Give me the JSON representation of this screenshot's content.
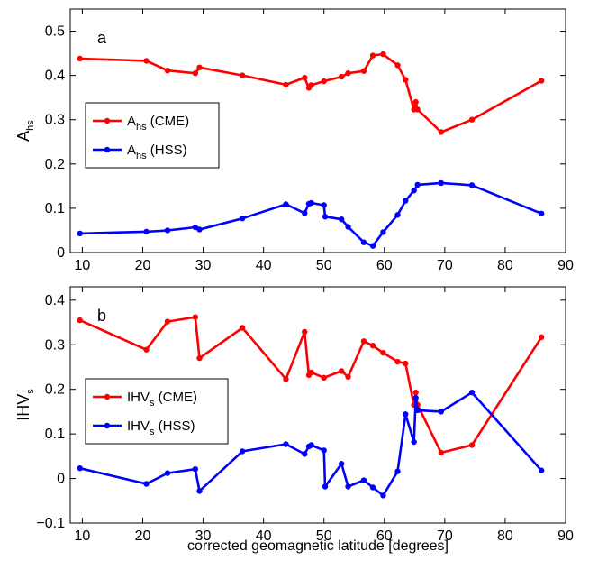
{
  "chart_data": [
    {
      "type": "line",
      "panel_label": "a",
      "ylabel": {
        "main": "A",
        "sub": "hs"
      },
      "xlim": [
        8,
        90
      ],
      "ylim": [
        0,
        0.55
      ],
      "x_ticks": [
        10,
        20,
        30,
        40,
        50,
        60,
        70,
        80,
        90
      ],
      "y_ticks": [
        0,
        0.1,
        0.2,
        0.3,
        0.4,
        0.5
      ],
      "y_tick_labels": [
        "0",
        "0.1",
        "0.2",
        "0.3",
        "0.4",
        "0.5"
      ],
      "legend_position": "center-left",
      "series": [
        {
          "name": "A_hs (CME)",
          "label_main": "A",
          "label_sub": "hs",
          "label_suffix": " (CME)",
          "color": "#ff0000",
          "x": [
            9.6,
            20.6,
            24.1,
            28.7,
            29.4,
            36.5,
            43.7,
            46.8,
            47.5,
            47.9,
            50.0,
            52.9,
            54.0,
            56.6,
            58.1,
            59.8,
            62.2,
            63.5,
            64.9,
            65.2,
            65.5,
            69.4,
            74.5,
            86.0
          ],
          "y": [
            0.438,
            0.433,
            0.411,
            0.405,
            0.418,
            0.4,
            0.379,
            0.395,
            0.372,
            0.378,
            0.387,
            0.397,
            0.405,
            0.41,
            0.445,
            0.448,
            0.423,
            0.39,
            0.323,
            0.34,
            0.323,
            0.272,
            0.3,
            0.388
          ]
        },
        {
          "name": "A_hs (HSS)",
          "label_main": "A",
          "label_sub": "hs",
          "label_suffix": " (HSS)",
          "color": "#0000ff",
          "x": [
            9.6,
            20.6,
            24.1,
            28.7,
            29.4,
            36.5,
            43.7,
            46.8,
            47.5,
            47.9,
            50.0,
            50.2,
            52.9,
            54.0,
            56.6,
            58.1,
            59.8,
            62.2,
            63.5,
            64.9,
            65.5,
            69.4,
            74.5,
            86.0
          ],
          "y": [
            0.043,
            0.047,
            0.05,
            0.057,
            0.052,
            0.077,
            0.109,
            0.089,
            0.11,
            0.112,
            0.107,
            0.081,
            0.075,
            0.058,
            0.023,
            0.015,
            0.046,
            0.085,
            0.117,
            0.14,
            0.153,
            0.157,
            0.152,
            0.088
          ]
        }
      ]
    },
    {
      "type": "line",
      "panel_label": "b",
      "ylabel": {
        "main": "IHV",
        "sub": "s"
      },
      "xlabel": "corrected geomagnetic latitude [degrees]",
      "xlim": [
        8,
        90
      ],
      "ylim": [
        -0.1,
        0.43
      ],
      "x_ticks": [
        10,
        20,
        30,
        40,
        50,
        60,
        70,
        80,
        90
      ],
      "y_ticks": [
        -0.1,
        0,
        0.1,
        0.2,
        0.3,
        0.4
      ],
      "y_tick_labels": [
        "−0.1",
        "0",
        "0.1",
        "0.2",
        "0.3",
        "0.4"
      ],
      "legend_position": "center-left",
      "series": [
        {
          "name": "IHV_s (CME)",
          "label_main": "IHV",
          "label_sub": "s",
          "label_suffix": " (CME)",
          "color": "#ff0000",
          "x": [
            9.6,
            20.6,
            24.1,
            28.7,
            29.4,
            36.5,
            43.7,
            46.8,
            47.5,
            47.9,
            50.0,
            52.9,
            54.0,
            56.6,
            58.1,
            59.8,
            62.2,
            63.5,
            64.9,
            65.2,
            65.5,
            69.4,
            74.5,
            86.0
          ],
          "y": [
            0.355,
            0.289,
            0.352,
            0.362,
            0.27,
            0.338,
            0.223,
            0.329,
            0.232,
            0.238,
            0.226,
            0.241,
            0.228,
            0.308,
            0.298,
            0.282,
            0.262,
            0.258,
            0.165,
            0.193,
            0.165,
            0.058,
            0.075,
            0.317
          ]
        },
        {
          "name": "IHV_s (HSS)",
          "label_main": "IHV",
          "label_sub": "s",
          "label_suffix": " (HSS)",
          "color": "#0000ff",
          "x": [
            9.6,
            20.6,
            24.1,
            28.7,
            29.4,
            36.5,
            43.7,
            46.8,
            47.5,
            47.9,
            50.0,
            50.2,
            52.9,
            54.0,
            56.6,
            58.1,
            59.8,
            62.2,
            63.5,
            64.9,
            65.2,
            65.5,
            69.4,
            74.5,
            86.0
          ],
          "y": [
            0.023,
            -0.012,
            0.012,
            0.021,
            -0.028,
            0.061,
            0.077,
            0.055,
            0.072,
            0.075,
            0.063,
            -0.018,
            0.033,
            -0.018,
            -0.004,
            -0.02,
            -0.038,
            0.016,
            0.144,
            0.082,
            0.181,
            0.153,
            0.15,
            0.193,
            0.018
          ]
        }
      ]
    }
  ]
}
